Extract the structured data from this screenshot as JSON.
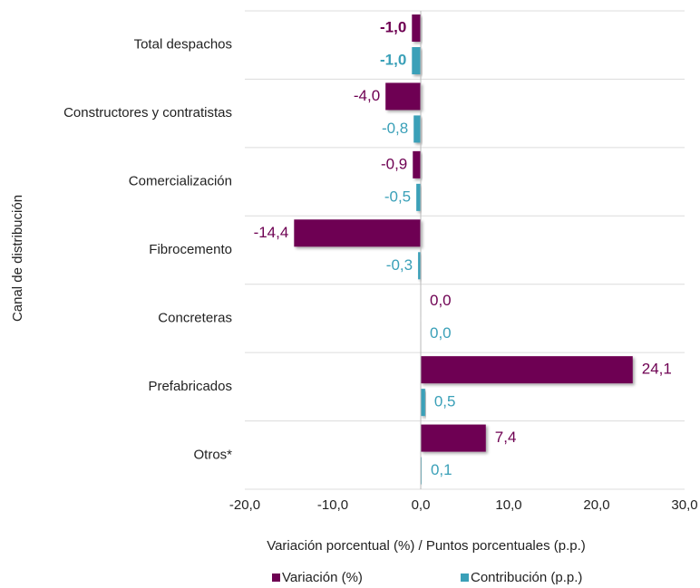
{
  "chart_data": {
    "type": "hbar",
    "y_label": "Canal de distribución",
    "x_label": "Variación porcentual (%) / Puntos porcentuales (p.p.)",
    "categories": [
      "Total  despachos",
      "Constructores y contratistas",
      "Comercialización",
      "Fibrocemento",
      "Concreteras",
      "Prefabricados",
      "Otros*"
    ],
    "series": [
      {
        "name": "Variación (%)",
        "color": "#6e0052",
        "values": [
          -1.0,
          -4.0,
          -0.9,
          -14.4,
          0.0,
          24.1,
          7.4
        ],
        "value_labels": [
          "-1,0",
          "-4,0",
          "-0,9",
          "-14,4",
          "0,0",
          "24,1",
          "7,4"
        ]
      },
      {
        "name": "Contribución (p.p.)",
        "color": "#3aa0b8",
        "values": [
          -1.0,
          -0.8,
          -0.5,
          -0.3,
          0.0,
          0.5,
          0.1
        ],
        "value_labels": [
          "-1,0",
          "-0,8",
          "-0,5",
          "-0,3",
          "0,0",
          "0,5",
          "0,1"
        ]
      }
    ],
    "xlim": [
      -20,
      30
    ],
    "xticks": [
      {
        "value": -20,
        "label": "-20,0"
      },
      {
        "value": -10,
        "label": "-10,0"
      },
      {
        "value": 0,
        "label": "0,0"
      },
      {
        "value": 10,
        "label": "10,0"
      },
      {
        "value": 20,
        "label": "20,0"
      },
      {
        "value": 30,
        "label": "30,0"
      }
    ],
    "legend": "bottom"
  }
}
